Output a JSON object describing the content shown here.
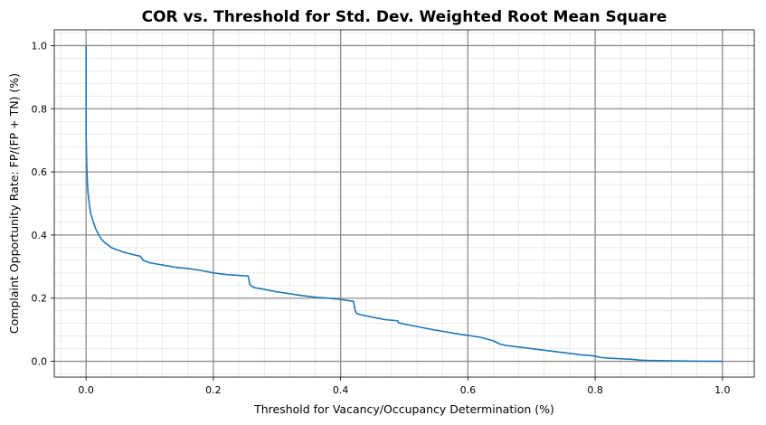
{
  "chart_data": {
    "type": "line",
    "title": "COR vs. Threshold for Std. Dev. Weighted Root Mean Square",
    "xlabel": "Threshold for Vacancy/Occupancy Determination (%)",
    "ylabel": "Complaint Opportunity Rate: FP/(FP + TN) (%)",
    "xlim": [
      -0.05,
      1.05
    ],
    "ylim": [
      -0.05,
      1.05
    ],
    "x_ticks": [
      0.0,
      0.2,
      0.4,
      0.6,
      0.8,
      1.0
    ],
    "x_tick_labels": [
      "0.0",
      "0.2",
      "0.4",
      "0.6",
      "0.8",
      "1.0"
    ],
    "y_ticks": [
      0.0,
      0.2,
      0.4,
      0.6,
      0.8,
      1.0
    ],
    "y_tick_labels": [
      "0.0",
      "0.2",
      "0.4",
      "0.6",
      "0.8",
      "1.0"
    ],
    "grid": true,
    "minor_grid": true,
    "line_color": "#1f77b4",
    "series": [
      {
        "x": [
          0.0,
          0.0,
          0.001,
          0.002,
          0.003,
          0.005,
          0.007,
          0.01,
          0.015,
          0.02,
          0.025,
          0.03,
          0.04,
          0.05,
          0.06,
          0.07,
          0.08,
          0.085,
          0.09,
          0.1,
          0.12,
          0.14,
          0.16,
          0.18,
          0.2,
          0.22,
          0.24,
          0.255,
          0.257,
          0.26,
          0.265,
          0.28,
          0.3,
          0.32,
          0.34,
          0.36,
          0.38,
          0.4,
          0.42,
          0.423,
          0.425,
          0.43,
          0.45,
          0.47,
          0.49,
          0.491,
          0.5,
          0.52,
          0.54,
          0.56,
          0.58,
          0.6,
          0.62,
          0.64,
          0.65,
          0.66,
          0.68,
          0.7,
          0.72,
          0.74,
          0.76,
          0.78,
          0.79,
          0.8,
          0.81,
          0.82,
          0.84,
          0.86,
          0.87,
          0.88,
          0.9,
          0.92,
          0.94,
          0.96,
          1.0
        ],
        "y": [
          1.0,
          0.72,
          0.62,
          0.57,
          0.535,
          0.5,
          0.47,
          0.45,
          0.42,
          0.4,
          0.385,
          0.375,
          0.36,
          0.352,
          0.345,
          0.34,
          0.335,
          0.333,
          0.32,
          0.312,
          0.305,
          0.298,
          0.294,
          0.288,
          0.28,
          0.275,
          0.272,
          0.27,
          0.245,
          0.238,
          0.233,
          0.228,
          0.22,
          0.214,
          0.208,
          0.203,
          0.2,
          0.196,
          0.19,
          0.16,
          0.152,
          0.148,
          0.14,
          0.132,
          0.128,
          0.122,
          0.118,
          0.11,
          0.102,
          0.095,
          0.088,
          0.082,
          0.076,
          0.065,
          0.055,
          0.05,
          0.045,
          0.04,
          0.035,
          0.03,
          0.025,
          0.02,
          0.019,
          0.016,
          0.012,
          0.01,
          0.008,
          0.006,
          0.004,
          0.003,
          0.002,
          0.0015,
          0.001,
          0.0005,
          0.0
        ]
      }
    ]
  }
}
